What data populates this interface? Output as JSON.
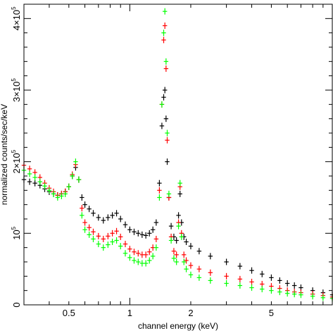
{
  "chart_data": {
    "type": "scatter",
    "xlabel": "channel energy (keV)",
    "ylabel": "normalized counts/sec/keV",
    "x_scale": "log",
    "y_scale": "linear",
    "xlim": [
      0.3,
      10
    ],
    "ylim": [
      0,
      420000
    ],
    "x_ticks": [
      {
        "value": 0.5,
        "label": "0.5"
      },
      {
        "value": 1,
        "label": "1"
      },
      {
        "value": 2,
        "label": "2"
      },
      {
        "value": 5,
        "label": "5"
      }
    ],
    "y_ticks": [
      {
        "value": 0,
        "label_base": "0",
        "label_exp": ""
      },
      {
        "value": 100000,
        "label_base": "10",
        "label_exp": "5"
      },
      {
        "value": 200000,
        "label_base": "2×10",
        "label_exp": "5"
      },
      {
        "value": 300000,
        "label_base": "3×10",
        "label_exp": "5"
      },
      {
        "value": 400000,
        "label_base": "4×10",
        "label_exp": "5"
      }
    ],
    "marker": "cross-with-error-bars",
    "grid": false,
    "legend": "none",
    "series": [
      {
        "color": "#000000",
        "x": [
          0.3,
          0.32,
          0.34,
          0.36,
          0.38,
          0.4,
          0.42,
          0.44,
          0.46,
          0.48,
          0.5,
          0.52,
          0.54,
          0.56,
          0.58,
          0.6,
          0.63,
          0.66,
          0.7,
          0.74,
          0.78,
          0.82,
          0.86,
          0.9,
          0.95,
          1.0,
          1.05,
          1.1,
          1.15,
          1.2,
          1.25,
          1.3,
          1.35,
          1.4,
          1.44,
          1.47,
          1.49,
          1.51,
          1.53,
          1.56,
          1.6,
          1.65,
          1.7,
          1.74,
          1.77,
          1.8,
          1.85,
          1.9,
          2.0,
          2.2,
          2.5,
          3.0,
          3.5,
          4.0,
          4.5,
          5.0,
          5.5,
          6.0,
          6.5,
          7.0,
          8.0,
          9.0,
          10.0
        ],
        "y": [
          175000,
          172000,
          170000,
          167000,
          162000,
          158000,
          155000,
          153000,
          155000,
          158000,
          165000,
          180000,
          192000,
          175000,
          150000,
          140000,
          134000,
          128000,
          122000,
          118000,
          122000,
          125000,
          128000,
          120000,
          112000,
          105000,
          102000,
          100000,
          98000,
          97000,
          100000,
          105000,
          115000,
          170000,
          250000,
          290000,
          300000,
          260000,
          200000,
          150000,
          110000,
          95000,
          90000,
          125000,
          155000,
          115000,
          95000,
          88000,
          82000,
          75000,
          68000,
          60000,
          54000,
          48000,
          43000,
          38000,
          34000,
          30000,
          27000,
          24000,
          20000,
          17000,
          14000
        ]
      },
      {
        "color": "#ff0000",
        "x": [
          0.3,
          0.32,
          0.34,
          0.36,
          0.38,
          0.4,
          0.42,
          0.44,
          0.46,
          0.48,
          0.5,
          0.52,
          0.54,
          0.56,
          0.58,
          0.6,
          0.63,
          0.66,
          0.7,
          0.74,
          0.78,
          0.82,
          0.86,
          0.9,
          0.95,
          1.0,
          1.05,
          1.1,
          1.15,
          1.2,
          1.25,
          1.3,
          1.35,
          1.4,
          1.44,
          1.47,
          1.49,
          1.51,
          1.53,
          1.56,
          1.6,
          1.65,
          1.7,
          1.74,
          1.77,
          1.8,
          1.85,
          1.9,
          2.0,
          2.2,
          2.5,
          3.0,
          3.5,
          4.0,
          4.5,
          5.0,
          5.5,
          6.0,
          6.5,
          7.0,
          8.0,
          9.0,
          10.0
        ],
        "y": [
          195000,
          190000,
          185000,
          178000,
          170000,
          163000,
          158000,
          153000,
          155000,
          158000,
          165000,
          182000,
          196000,
          175000,
          135000,
          115000,
          108000,
          102000,
          96000,
          92000,
          96000,
          100000,
          103000,
          95000,
          85000,
          78000,
          74000,
          72000,
          70000,
          70000,
          74000,
          80000,
          92000,
          160000,
          280000,
          370000,
          390000,
          330000,
          230000,
          150000,
          95000,
          75000,
          70000,
          115000,
          165000,
          100000,
          70000,
          62000,
          55000,
          50000,
          45000,
          40000,
          36000,
          32000,
          29000,
          26000,
          23000,
          20000,
          18000,
          17000,
          15000,
          13000,
          11000
        ]
      },
      {
        "color": "#00ff00",
        "x": [
          0.3,
          0.32,
          0.34,
          0.36,
          0.38,
          0.4,
          0.42,
          0.44,
          0.46,
          0.48,
          0.5,
          0.52,
          0.54,
          0.56,
          0.58,
          0.6,
          0.63,
          0.66,
          0.7,
          0.74,
          0.78,
          0.82,
          0.86,
          0.9,
          0.95,
          1.0,
          1.05,
          1.1,
          1.15,
          1.2,
          1.25,
          1.3,
          1.35,
          1.4,
          1.44,
          1.47,
          1.49,
          1.51,
          1.53,
          1.56,
          1.6,
          1.65,
          1.7,
          1.74,
          1.77,
          1.8,
          1.85,
          1.9,
          2.0,
          2.2,
          2.5,
          3.0,
          3.5,
          4.0,
          4.5,
          5.0,
          5.5,
          6.0,
          6.5,
          7.0,
          8.0,
          9.0,
          10.0
        ],
        "y": [
          188000,
          183000,
          178000,
          172000,
          166000,
          160000,
          155000,
          150000,
          152000,
          155000,
          165000,
          180000,
          200000,
          175000,
          125000,
          105000,
          98000,
          92000,
          85000,
          80000,
          84000,
          88000,
          90000,
          82000,
          72000,
          66000,
          62000,
          60000,
          58000,
          58000,
          62000,
          68000,
          80000,
          150000,
          280000,
          380000,
          410000,
          340000,
          240000,
          155000,
          90000,
          65000,
          60000,
          110000,
          170000,
          95000,
          60000,
          50000,
          42000,
          38000,
          34000,
          30000,
          27000,
          24000,
          22000,
          20000,
          18000,
          16000,
          15000,
          14000,
          12000,
          10000,
          9000
        ]
      }
    ]
  }
}
